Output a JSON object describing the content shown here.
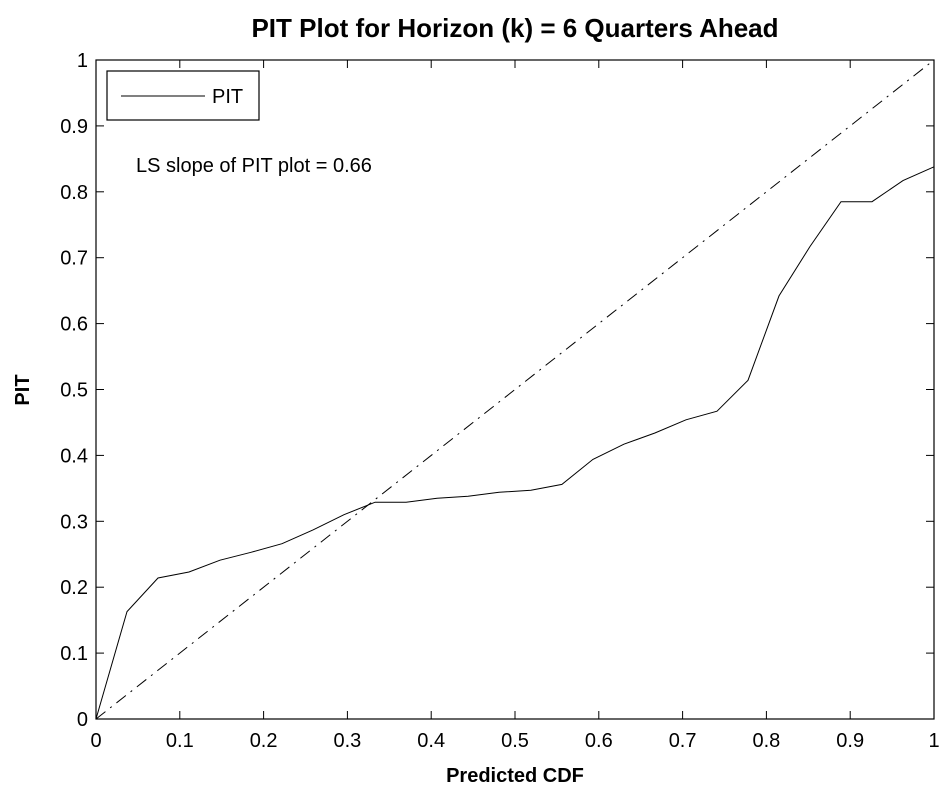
{
  "chart_data": {
    "type": "line",
    "title": "PIT Plot for Horizon (k) = 6 Quarters Ahead",
    "xlabel": "Predicted CDF",
    "ylabel": "PIT",
    "xlim": [
      0,
      1
    ],
    "ylim": [
      0,
      1
    ],
    "x_ticks": [
      "0",
      "0.1",
      "0.2",
      "0.3",
      "0.4",
      "0.5",
      "0.6",
      "0.7",
      "0.8",
      "0.9",
      "1"
    ],
    "y_ticks": [
      "0",
      "0.1",
      "0.2",
      "0.3",
      "0.4",
      "0.5",
      "0.6",
      "0.7",
      "0.8",
      "0.9",
      "1"
    ],
    "grid": false,
    "legend": {
      "placement": "top-left",
      "entries": [
        "PIT"
      ]
    },
    "annotation": "LS slope of PIT plot = 0.66",
    "series": [
      {
        "name": "PIT",
        "style": "solid",
        "color": "#000000",
        "x": [
          0,
          0.037,
          0.074,
          0.111,
          0.148,
          0.185,
          0.222,
          0.259,
          0.296,
          0.333,
          0.37,
          0.407,
          0.444,
          0.481,
          0.519,
          0.556,
          0.593,
          0.63,
          0.667,
          0.704,
          0.741,
          0.778,
          0.815,
          0.852,
          0.889,
          0.926,
          0.963,
          1.0
        ],
        "y": [
          0,
          0.163,
          0.214,
          0.223,
          0.241,
          0.253,
          0.266,
          0.287,
          0.31,
          0.329,
          0.329,
          0.335,
          0.338,
          0.344,
          0.347,
          0.356,
          0.394,
          0.417,
          0.434,
          0.454,
          0.467,
          0.514,
          0.642,
          0.717,
          0.785,
          0.785,
          0.817,
          0.838
        ]
      },
      {
        "style": "dash-dot",
        "color": "#000000",
        "x": [
          0,
          1
        ],
        "y": [
          0,
          1
        ]
      }
    ]
  }
}
